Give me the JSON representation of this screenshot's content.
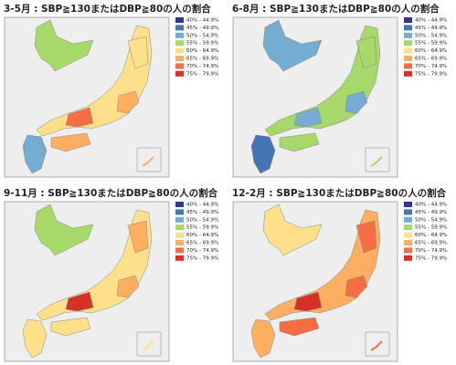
{
  "panels": [
    {
      "title": "3-5月 : SBP≧130またはDBP≧80の人の割合"
    },
    {
      "title": "6-8月 : SBP≧130またはDBP≧80の人の割合"
    },
    {
      "title": "9-11月 : SBP≧130またはDBP≧80の人の割合"
    },
    {
      "title": "12-2月 : SBP≧130またはDBP≧80の人の割合"
    }
  ],
  "legend": [
    {
      "label": "40% - 44.9%",
      "color": "#313695"
    },
    {
      "label": "45% - 49.9%",
      "color": "#4575b4"
    },
    {
      "label": "50% - 54.9%",
      "color": "#74add1"
    },
    {
      "label": "55% - 59.9%",
      "color": "#a6d96a"
    },
    {
      "label": "60% - 64.9%",
      "color": "#fee08b"
    },
    {
      "label": "65% - 69.9%",
      "color": "#fdae61"
    },
    {
      "label": "70% - 74.9%",
      "color": "#f46d43"
    },
    {
      "label": "75% - 79.9%",
      "color": "#d73027"
    }
  ]
}
